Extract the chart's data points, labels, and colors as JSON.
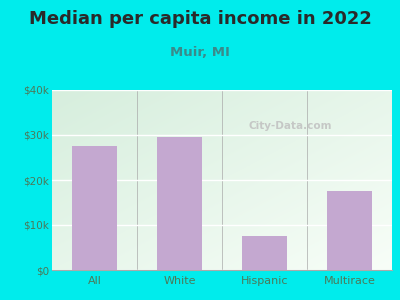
{
  "title": "Median per capita income in 2022",
  "subtitle": "Muir, MI",
  "categories": [
    "All",
    "White",
    "Hispanic",
    "Multirace"
  ],
  "values": [
    27500,
    29500,
    7500,
    17500
  ],
  "bar_color": "#c4a8d0",
  "ylim": [
    0,
    40000
  ],
  "yticks": [
    0,
    10000,
    20000,
    30000,
    40000
  ],
  "ytick_labels": [
    "$0",
    "$10k",
    "$20k",
    "$30k",
    "$40k"
  ],
  "background_outer": "#00ecec",
  "background_plot_top_left": "#d6eedd",
  "background_plot_bottom_right": "#f5fdf5",
  "title_fontsize": 13,
  "subtitle_fontsize": 9.5,
  "watermark": "City-Data.com",
  "title_color": "#2a2a2a",
  "subtitle_color": "#3a8a8a",
  "tick_color": "#4a7a5a",
  "grid_color": "#ffffff",
  "axis_line_color": "#aaaaaa"
}
